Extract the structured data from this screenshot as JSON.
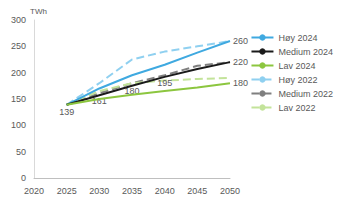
{
  "chart_data": {
    "type": "line",
    "ylabel": "TWh",
    "x": [
      2025,
      2030,
      2035,
      2040,
      2045,
      2050
    ],
    "xlim": [
      2020,
      2050
    ],
    "xticks": [
      2020,
      2025,
      2030,
      2035,
      2040,
      2045,
      2050
    ],
    "ylim": [
      0,
      300
    ],
    "yticks": [
      0,
      50,
      100,
      150,
      200,
      250,
      300
    ],
    "grid": false,
    "legend": "right",
    "data_labels": true,
    "series": [
      {
        "name": "Høy 2024",
        "color": "#3fa9e0",
        "line_style": "solid",
        "values": [
          139,
          170,
          195,
          215,
          238,
          260
        ],
        "value_labels": [
          null,
          null,
          null,
          null,
          null,
          "260"
        ]
      },
      {
        "name": "Medium 2024",
        "color": "#1a1a1a",
        "line_style": "solid",
        "values": [
          139,
          157,
          175,
          192,
          207,
          220
        ],
        "value_labels": [
          null,
          null,
          null,
          null,
          null,
          "220"
        ]
      },
      {
        "name": "Lav 2024",
        "color": "#8cc63f",
        "line_style": "solid",
        "values": [
          139,
          150,
          158,
          165,
          172,
          180
        ],
        "value_labels": [
          null,
          null,
          null,
          null,
          null,
          "180"
        ]
      },
      {
        "name": "Høy 2022",
        "color": "#8fd0f0",
        "line_style": "dashed",
        "values": [
          139,
          180,
          225,
          240,
          250,
          260
        ]
      },
      {
        "name": "Medium 2022",
        "color": "#7f7f7f",
        "line_style": "dashed",
        "values": [
          139,
          161,
          180,
          195,
          213,
          220
        ],
        "value_labels": [
          "139",
          "161",
          "180",
          "195",
          null,
          null
        ]
      },
      {
        "name": "Lav 2022",
        "color": "#c3e39a",
        "line_style": "dashed",
        "values": [
          139,
          165,
          180,
          185,
          188,
          190
        ]
      }
    ]
  }
}
